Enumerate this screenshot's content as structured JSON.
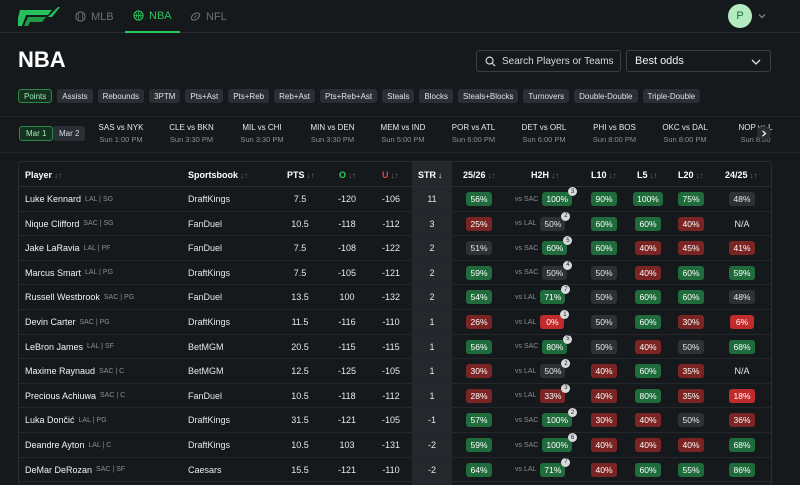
{
  "nav": {
    "tabs": [
      {
        "label": "MLB",
        "icon": "baseball-icon"
      },
      {
        "label": "NBA",
        "icon": "basketball-icon"
      },
      {
        "label": "NFL",
        "icon": "football-icon"
      }
    ],
    "avatar_initial": "P",
    "accent": "#29c65e"
  },
  "page": {
    "title": "NBA",
    "search_placeholder": "Search Players or Teams",
    "odds_select": "Best odds"
  },
  "stat_filters": [
    "Points",
    "Assists",
    "Rebounds",
    "3PTM",
    "Pts+Ast",
    "Pts+Reb",
    "Reb+Ast",
    "Pts+Reb+Ast",
    "Steals",
    "Blocks",
    "Steals+Blocks",
    "Turnovers",
    "Double-Double",
    "Triple-Double"
  ],
  "dates": [
    "Mar 1",
    "Mar 2"
  ],
  "games": [
    {
      "matchup": "SAS vs NYK",
      "time": "Sun 1:00 PM"
    },
    {
      "matchup": "CLE vs BKN",
      "time": "Sun 3:30 PM"
    },
    {
      "matchup": "MIL vs CHI",
      "time": "Sun 3:30 PM"
    },
    {
      "matchup": "MIN vs DEN",
      "time": "Sun 3:30 PM"
    },
    {
      "matchup": "MEM vs IND",
      "time": "Sun 5:00 PM"
    },
    {
      "matchup": "POR vs ATL",
      "time": "Sun 6:00 PM"
    },
    {
      "matchup": "DET vs ORL",
      "time": "Sun 6:00 PM"
    },
    {
      "matchup": "PHI vs BOS",
      "time": "Sun 8:00 PM"
    },
    {
      "matchup": "OKC vs DAL",
      "time": "Sun 8:00 PM"
    },
    {
      "matchup": "NOP vs L",
      "time": "Sun 8:00"
    }
  ],
  "table": {
    "headers": {
      "player": "Player",
      "sportsbook": "Sportsbook",
      "pts": "PTS",
      "over": "O",
      "under": "U",
      "str": "STR",
      "season": "25/26",
      "h2h": "H2H",
      "l10": "L10",
      "l5": "L5",
      "l20": "L20",
      "prev": "24/25"
    },
    "sort_icon": "↓↑",
    "sort_active_icon": "↓",
    "rows": [
      {
        "name": "Luke Kennard",
        "meta": "LAL | SG",
        "book": "DraftKings",
        "pts": "7.5",
        "o": "-120",
        "u": "-106",
        "str": "11",
        "season": {
          "v": "56%",
          "c": "g"
        },
        "vs": "vs SAC",
        "h2h": {
          "v": "100%",
          "c": "g",
          "n": "3"
        },
        "l10": {
          "v": "90%",
          "c": "g"
        },
        "l5": {
          "v": "100%",
          "c": "g"
        },
        "l20": {
          "v": "75%",
          "c": "g"
        },
        "prev": {
          "v": "48%",
          "c": "n"
        }
      },
      {
        "name": "Nique Clifford",
        "meta": "SAC | SG",
        "book": "FanDuel",
        "pts": "10.5",
        "o": "-118",
        "u": "-112",
        "str": "3",
        "season": {
          "v": "25%",
          "c": "r"
        },
        "vs": "vs LAL",
        "h2h": {
          "v": "50%",
          "c": "n",
          "n": "2"
        },
        "l10": {
          "v": "60%",
          "c": "g"
        },
        "l5": {
          "v": "60%",
          "c": "g"
        },
        "l20": {
          "v": "40%",
          "c": "r"
        },
        "prev": {
          "v": "N/A",
          "c": "t"
        }
      },
      {
        "name": "Jake LaRavia",
        "meta": "LAL | PF",
        "book": "FanDuel",
        "pts": "7.5",
        "o": "-108",
        "u": "-122",
        "str": "2",
        "season": {
          "v": "51%",
          "c": "n"
        },
        "vs": "vs SAC",
        "h2h": {
          "v": "60%",
          "c": "g",
          "n": "5"
        },
        "l10": {
          "v": "60%",
          "c": "g"
        },
        "l5": {
          "v": "40%",
          "c": "r"
        },
        "l20": {
          "v": "45%",
          "c": "r"
        },
        "prev": {
          "v": "41%",
          "c": "r"
        }
      },
      {
        "name": "Marcus Smart",
        "meta": "LAL | PG",
        "book": "DraftKings",
        "pts": "7.5",
        "o": "-105",
        "u": "-121",
        "str": "2",
        "season": {
          "v": "59%",
          "c": "g"
        },
        "vs": "vs SAC",
        "h2h": {
          "v": "50%",
          "c": "n",
          "n": "4"
        },
        "l10": {
          "v": "50%",
          "c": "n"
        },
        "l5": {
          "v": "40%",
          "c": "r"
        },
        "l20": {
          "v": "60%",
          "c": "g"
        },
        "prev": {
          "v": "59%",
          "c": "g"
        }
      },
      {
        "name": "Russell Westbrook",
        "meta": "SAC | PG",
        "book": "FanDuel",
        "pts": "13.5",
        "o": "100",
        "u": "-132",
        "str": "2",
        "season": {
          "v": "54%",
          "c": "g"
        },
        "vs": "vs LAL",
        "h2h": {
          "v": "71%",
          "c": "g",
          "n": "7"
        },
        "l10": {
          "v": "50%",
          "c": "n"
        },
        "l5": {
          "v": "60%",
          "c": "g"
        },
        "l20": {
          "v": "60%",
          "c": "g"
        },
        "prev": {
          "v": "48%",
          "c": "n"
        }
      },
      {
        "name": "Devin Carter",
        "meta": "SAC | PG",
        "book": "DraftKings",
        "pts": "11.5",
        "o": "-116",
        "u": "-110",
        "str": "1",
        "season": {
          "v": "26%",
          "c": "r"
        },
        "vs": "vs LAL",
        "h2h": {
          "v": "0%",
          "c": "rb",
          "n": "1"
        },
        "l10": {
          "v": "50%",
          "c": "n"
        },
        "l5": {
          "v": "60%",
          "c": "g"
        },
        "l20": {
          "v": "30%",
          "c": "r"
        },
        "prev": {
          "v": "6%",
          "c": "rb"
        }
      },
      {
        "name": "LeBron James",
        "meta": "LAL | SF",
        "book": "BetMGM",
        "pts": "20.5",
        "o": "-115",
        "u": "-115",
        "str": "1",
        "season": {
          "v": "56%",
          "c": "g"
        },
        "vs": "vs SAC",
        "h2h": {
          "v": "80%",
          "c": "g",
          "n": "5"
        },
        "l10": {
          "v": "50%",
          "c": "n"
        },
        "l5": {
          "v": "40%",
          "c": "r"
        },
        "l20": {
          "v": "50%",
          "c": "n"
        },
        "prev": {
          "v": "68%",
          "c": "g"
        }
      },
      {
        "name": "Maxime Raynaud",
        "meta": "SAC | C",
        "book": "BetMGM",
        "pts": "12.5",
        "o": "-125",
        "u": "-105",
        "str": "1",
        "season": {
          "v": "30%",
          "c": "r"
        },
        "vs": "vs LAL",
        "h2h": {
          "v": "50%",
          "c": "n",
          "n": "2"
        },
        "l10": {
          "v": "40%",
          "c": "r"
        },
        "l5": {
          "v": "60%",
          "c": "g"
        },
        "l20": {
          "v": "35%",
          "c": "r"
        },
        "prev": {
          "v": "N/A",
          "c": "t"
        }
      },
      {
        "name": "Precious Achiuwa",
        "meta": "SAC | C",
        "book": "FanDuel",
        "pts": "10.5",
        "o": "-118",
        "u": "-112",
        "str": "1",
        "season": {
          "v": "28%",
          "c": "r"
        },
        "vs": "vs LAL",
        "h2h": {
          "v": "33%",
          "c": "r",
          "n": "3"
        },
        "l10": {
          "v": "40%",
          "c": "r"
        },
        "l5": {
          "v": "80%",
          "c": "g"
        },
        "l20": {
          "v": "35%",
          "c": "r"
        },
        "prev": {
          "v": "18%",
          "c": "rb"
        }
      },
      {
        "name": "Luka Dončić",
        "meta": "LAL | PG",
        "book": "DraftKings",
        "pts": "31.5",
        "o": "-121",
        "u": "-105",
        "str": "-1",
        "season": {
          "v": "57%",
          "c": "g"
        },
        "vs": "vs SAC",
        "h2h": {
          "v": "100%",
          "c": "g",
          "n": "2"
        },
        "l10": {
          "v": "30%",
          "c": "r"
        },
        "l5": {
          "v": "40%",
          "c": "r"
        },
        "l20": {
          "v": "50%",
          "c": "n"
        },
        "prev": {
          "v": "36%",
          "c": "r"
        }
      },
      {
        "name": "Deandre Ayton",
        "meta": "LAL | C",
        "book": "DraftKings",
        "pts": "10.5",
        "o": "103",
        "u": "-131",
        "str": "-2",
        "season": {
          "v": "59%",
          "c": "g"
        },
        "vs": "vs SAC",
        "h2h": {
          "v": "100%",
          "c": "g",
          "n": "6"
        },
        "l10": {
          "v": "40%",
          "c": "r"
        },
        "l5": {
          "v": "40%",
          "c": "r"
        },
        "l20": {
          "v": "40%",
          "c": "r"
        },
        "prev": {
          "v": "68%",
          "c": "g"
        }
      },
      {
        "name": "DeMar DeRozan",
        "meta": "SAC | SF",
        "book": "Caesars",
        "pts": "15.5",
        "o": "-121",
        "u": "-110",
        "str": "-2",
        "season": {
          "v": "64%",
          "c": "g"
        },
        "vs": "vs LAL",
        "h2h": {
          "v": "71%",
          "c": "g",
          "n": "7"
        },
        "l10": {
          "v": "40%",
          "c": "r"
        },
        "l5": {
          "v": "60%",
          "c": "g"
        },
        "l20": {
          "v": "55%",
          "c": "g"
        },
        "prev": {
          "v": "86%",
          "c": "g"
        }
      }
    ]
  }
}
